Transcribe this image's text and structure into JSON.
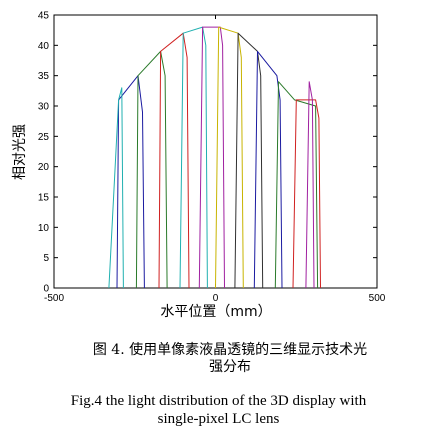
{
  "figure": {
    "caption_cn_line1": "图 4.   使用单像素液晶透镜的三维显示技术光",
    "caption_cn_line2": "强分布",
    "caption_en_line1": "Fig.4 the light distribution of the 3D display with",
    "caption_en_line2": "single-pixel LC lens"
  },
  "chart_data": {
    "type": "line",
    "title": "",
    "xlabel": "水平位置（mm）",
    "ylabel": "相对光强",
    "xlim": [
      -500,
      500
    ],
    "ylim": [
      0,
      45
    ],
    "xticks": [
      -500,
      0,
      500
    ],
    "yticks": [
      0,
      5,
      10,
      15,
      20,
      25,
      30,
      35,
      40,
      45
    ],
    "grid": false,
    "legend": "none",
    "series": [
      {
        "color": "#1a1aa0",
        "points": [
          [
            -305,
            0
          ],
          [
            -300,
            31
          ],
          [
            -240,
            35
          ],
          [
            -226,
            29
          ],
          [
            -220,
            0
          ]
        ]
      },
      {
        "color": "#2a7a2a",
        "points": [
          [
            -245,
            0
          ],
          [
            -240,
            35
          ],
          [
            -170,
            39
          ],
          [
            -156,
            35
          ],
          [
            -150,
            0
          ]
        ]
      },
      {
        "color": "#d02020",
        "points": [
          [
            -175,
            0
          ],
          [
            -170,
            39
          ],
          [
            -100,
            42
          ],
          [
            -88,
            38
          ],
          [
            -82,
            0
          ]
        ]
      },
      {
        "color": "#20b0b0",
        "points": [
          [
            -110,
            0
          ],
          [
            -100,
            42
          ],
          [
            -40,
            43
          ],
          [
            -30,
            40
          ],
          [
            -25,
            0
          ]
        ]
      },
      {
        "color": "#a020a0",
        "points": [
          [
            -50,
            0
          ],
          [
            -40,
            43
          ],
          [
            15,
            43
          ],
          [
            22,
            40
          ],
          [
            28,
            0
          ]
        ]
      },
      {
        "color": "#c8b400",
        "points": [
          [
            0,
            0
          ],
          [
            10,
            43
          ],
          [
            70,
            42
          ],
          [
            80,
            38
          ],
          [
            86,
            0
          ]
        ]
      },
      {
        "color": "#303030",
        "points": [
          [
            60,
            0
          ],
          [
            70,
            42
          ],
          [
            130,
            39
          ],
          [
            140,
            35
          ],
          [
            146,
            0
          ]
        ]
      },
      {
        "color": "#1a1aa0",
        "points": [
          [
            120,
            0
          ],
          [
            130,
            39
          ],
          [
            190,
            35
          ],
          [
            200,
            31
          ],
          [
            206,
            0
          ]
        ]
      },
      {
        "color": "#2a7a2a",
        "points": [
          [
            185,
            0
          ],
          [
            195,
            34
          ],
          [
            245,
            31
          ],
          [
            310,
            30
          ],
          [
            316,
            0
          ]
        ]
      },
      {
        "color": "#d02020",
        "points": [
          [
            240,
            0
          ],
          [
            250,
            31
          ],
          [
            310,
            31
          ],
          [
            320,
            28
          ],
          [
            325,
            0
          ]
        ]
      },
      {
        "color": "#20b0b0",
        "points": [
          [
            -330,
            0
          ],
          [
            -300,
            31
          ],
          [
            -290,
            33
          ],
          [
            -285,
            0
          ]
        ]
      },
      {
        "color": "#a020a0",
        "points": [
          [
            280,
            0
          ],
          [
            290,
            34
          ],
          [
            300,
            31
          ],
          [
            305,
            0
          ]
        ]
      }
    ]
  }
}
